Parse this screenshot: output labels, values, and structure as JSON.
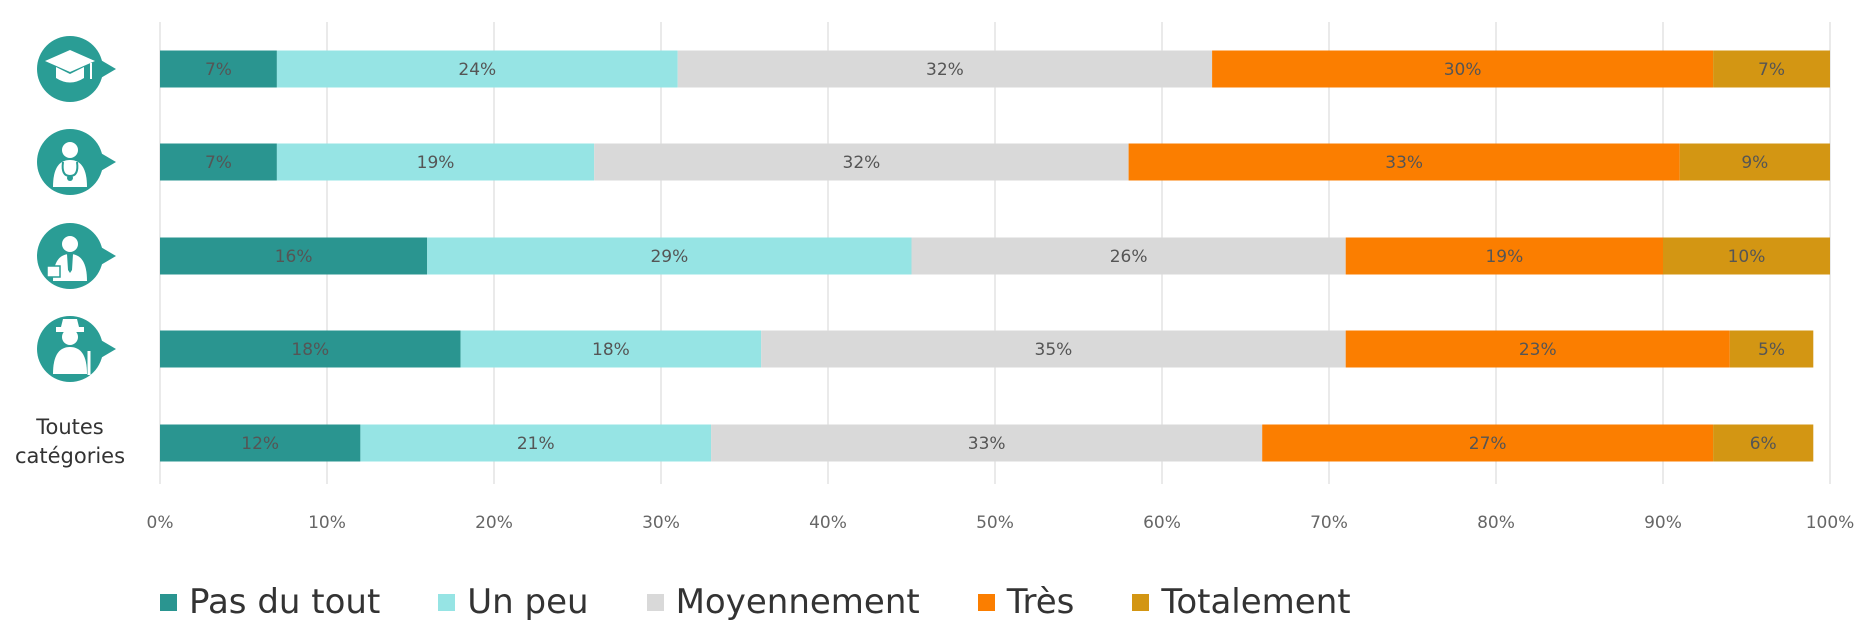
{
  "chart_data": {
    "type": "bar",
    "orientation": "horizontal",
    "stacked": true,
    "title": "",
    "xlabel": "",
    "ylabel": "",
    "xlim": [
      0,
      100
    ],
    "x_ticks": [
      "0%",
      "10%",
      "20%",
      "30%",
      "40%",
      "50%",
      "60%",
      "70%",
      "80%",
      "90%",
      "100%"
    ],
    "grid": "vertical",
    "legend_position": "bottom",
    "categories": [
      {
        "icon": "graduation-cap-icon",
        "label": ""
      },
      {
        "icon": "doctor-icon",
        "label": ""
      },
      {
        "icon": "professional-briefcase-icon",
        "label": ""
      },
      {
        "icon": "retiree-icon",
        "label": ""
      },
      {
        "icon": "",
        "label": "Toutes catégories"
      }
    ],
    "series": [
      {
        "name": "Pas du tout",
        "color": "#2a9590",
        "values": [
          7,
          7,
          16,
          18,
          12
        ]
      },
      {
        "name": "Un peu",
        "color": "#96e4e4",
        "values": [
          24,
          19,
          29,
          18,
          21
        ]
      },
      {
        "name": "Moyennement",
        "color": "#d9d9d9",
        "values": [
          32,
          32,
          26,
          35,
          33
        ]
      },
      {
        "name": "Très",
        "color": "#fb7e00",
        "values": [
          30,
          33,
          19,
          23,
          27
        ]
      },
      {
        "name": "Totalement",
        "color": "#d39613",
        "values": [
          7,
          9,
          10,
          5,
          6
        ]
      }
    ],
    "data_label_suffix": "%"
  }
}
